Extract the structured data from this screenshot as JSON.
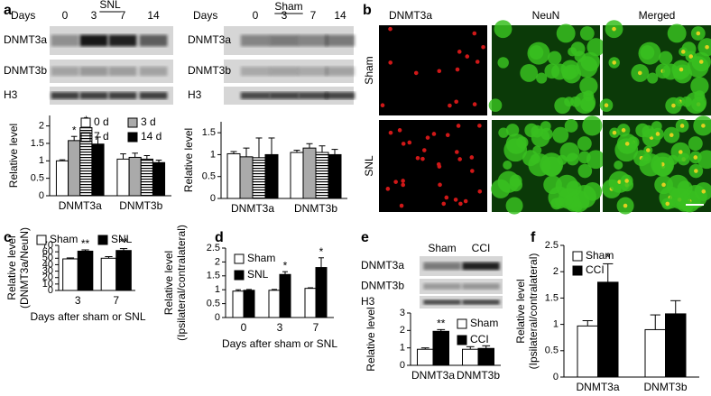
{
  "panel_letters": [
    "a",
    "b",
    "c",
    "d",
    "e",
    "f"
  ],
  "blots": [
    {
      "title": "SNL",
      "lane_label": "Days",
      "lanes": [
        "0",
        "3",
        "7",
        "14"
      ],
      "rows": [
        "DNMT3a",
        "DNMT3b",
        "H3"
      ]
    },
    {
      "title": "Sham",
      "lane_label": "Days",
      "lanes": [
        "0",
        "3",
        "7",
        "14"
      ],
      "rows": [
        "DNMT3a",
        "DNMT3b",
        "H3"
      ]
    },
    {
      "lanes": [
        "Sham",
        "CCI"
      ],
      "rows": [
        "DNMT3a",
        "DNMT3b",
        "H3"
      ]
    }
  ],
  "micrographs": {
    "columns": [
      "DNMT3a",
      "NeuN",
      "Merged"
    ],
    "rows": [
      "Sham",
      "SNL"
    ]
  },
  "chart_data": [
    {
      "type": "bar",
      "ylabel": [
        "Relative level"
      ],
      "categories": [
        "DNMT3a",
        "DNMT3b"
      ],
      "ylim": [
        0,
        2.3
      ],
      "yticks": [
        0,
        0.5,
        1,
        1.5,
        2
      ],
      "legend": "top-right",
      "series": [
        {
          "name": "0 d",
          "color": "#ffffff",
          "values": [
            1.0,
            1.05
          ],
          "errors": [
            0.03,
            0.15
          ],
          "significance": [
            null,
            null
          ]
        },
        {
          "name": "3 d",
          "color": "#aaaaaa",
          "values": [
            1.58,
            1.1
          ],
          "errors": [
            0.12,
            0.12
          ],
          "significance": [
            "*",
            null
          ]
        },
        {
          "name": "7 d",
          "color": "#ffffff",
          "hatch": "horizontal",
          "values": [
            1.95,
            1.05
          ],
          "errors": [
            0.05,
            0.1
          ],
          "significance": [
            "*",
            null
          ]
        },
        {
          "name": "14 d",
          "color": "#000000",
          "values": [
            1.48,
            0.95
          ],
          "errors": [
            0.2,
            0.07
          ],
          "significance": [
            null,
            null
          ]
        }
      ]
    },
    {
      "type": "bar",
      "ylabel": [
        "Relative level"
      ],
      "categories": [
        "DNMT3a",
        "DNMT3b"
      ],
      "ylim": [
        0,
        1.75
      ],
      "yticks": [
        0,
        0.5,
        1,
        1.5
      ],
      "series": [
        {
          "color": "#ffffff",
          "values": [
            1.02,
            1.05
          ],
          "errors": [
            0.05,
            0.05
          ]
        },
        {
          "color": "#aaaaaa",
          "values": [
            0.95,
            1.15
          ],
          "errors": [
            0.2,
            0.1
          ]
        },
        {
          "color": "#ffffff",
          "hatch": "horizontal",
          "values": [
            0.93,
            1.05
          ],
          "errors": [
            0.45,
            0.15
          ]
        },
        {
          "color": "#000000",
          "values": [
            1.0,
            1.0
          ],
          "errors": [
            0.38,
            0.12
          ]
        }
      ]
    },
    {
      "type": "bar",
      "ylabel": [
        "Relative level",
        "(DNMT3a/NeuN)"
      ],
      "xlabel": "Days after sham or SNL",
      "categories": [
        "3",
        "7"
      ],
      "ylim": [
        0,
        70
      ],
      "yticks": [
        0,
        10,
        20,
        30,
        40,
        50,
        60,
        70
      ],
      "legend": "above",
      "series": [
        {
          "name": "Sham",
          "color": "#ffffff",
          "values": [
            49,
            50
          ],
          "errors": [
            1.5,
            2.5
          ],
          "significance": [
            null,
            null
          ]
        },
        {
          "name": "SNL",
          "color": "#000000",
          "values": [
            61,
            62
          ],
          "errors": [
            2,
            3
          ],
          "significance": [
            "**",
            "**"
          ]
        }
      ]
    },
    {
      "type": "bar",
      "ylabel": [
        "Relative level",
        "(Ipsilateral/contralateral)"
      ],
      "xlabel": "Days after sham or SNL",
      "categories": [
        "0",
        "3",
        "7"
      ],
      "ylim": [
        0,
        2.5
      ],
      "yticks": [
        0,
        0.5,
        1,
        1.5,
        2,
        2.5
      ],
      "legend": "top-left",
      "series": [
        {
          "name": "Sham",
          "color": "#ffffff",
          "values": [
            0.95,
            0.98,
            1.05
          ],
          "errors": [
            0.05,
            0.03,
            0.02
          ],
          "significance": [
            null,
            null,
            null
          ]
        },
        {
          "name": "SNL",
          "color": "#000000",
          "values": [
            0.98,
            1.55,
            1.8
          ],
          "errors": [
            0.03,
            0.1,
            0.35
          ],
          "significance": [
            null,
            "*",
            "*"
          ]
        }
      ]
    },
    {
      "type": "bar",
      "ylabel": [
        "Relative level"
      ],
      "categories": [
        "DNMT3a",
        "DNMT3b"
      ],
      "ylim": [
        0,
        3
      ],
      "yticks": [
        0,
        1,
        2,
        3
      ],
      "legend": "right",
      "series": [
        {
          "name": "Sham",
          "color": "#ffffff",
          "values": [
            0.92,
            0.92
          ],
          "errors": [
            0.08,
            0.15
          ],
          "significance": [
            null,
            null
          ]
        },
        {
          "name": "CCI",
          "color": "#000000",
          "values": [
            1.95,
            0.97
          ],
          "errors": [
            0.1,
            0.15
          ],
          "significance": [
            "**",
            null
          ]
        }
      ]
    },
    {
      "type": "bar",
      "ylabel": [
        "Relative level",
        "(Ipsilateral/contralateral)"
      ],
      "categories": [
        "DNMT3a",
        "DNMT3b"
      ],
      "ylim": [
        0,
        2.5
      ],
      "yticks": [
        0,
        0.5,
        1,
        1.5,
        2,
        2.5
      ],
      "legend": "top-left",
      "series": [
        {
          "name": "Sham",
          "color": "#ffffff",
          "values": [
            0.97,
            0.9
          ],
          "errors": [
            0.1,
            0.28
          ],
          "significance": [
            null,
            null
          ]
        },
        {
          "name": "CCI",
          "color": "#000000",
          "values": [
            1.8,
            1.2
          ],
          "errors": [
            0.35,
            0.25
          ],
          "significance": [
            "*",
            null
          ]
        }
      ]
    }
  ]
}
